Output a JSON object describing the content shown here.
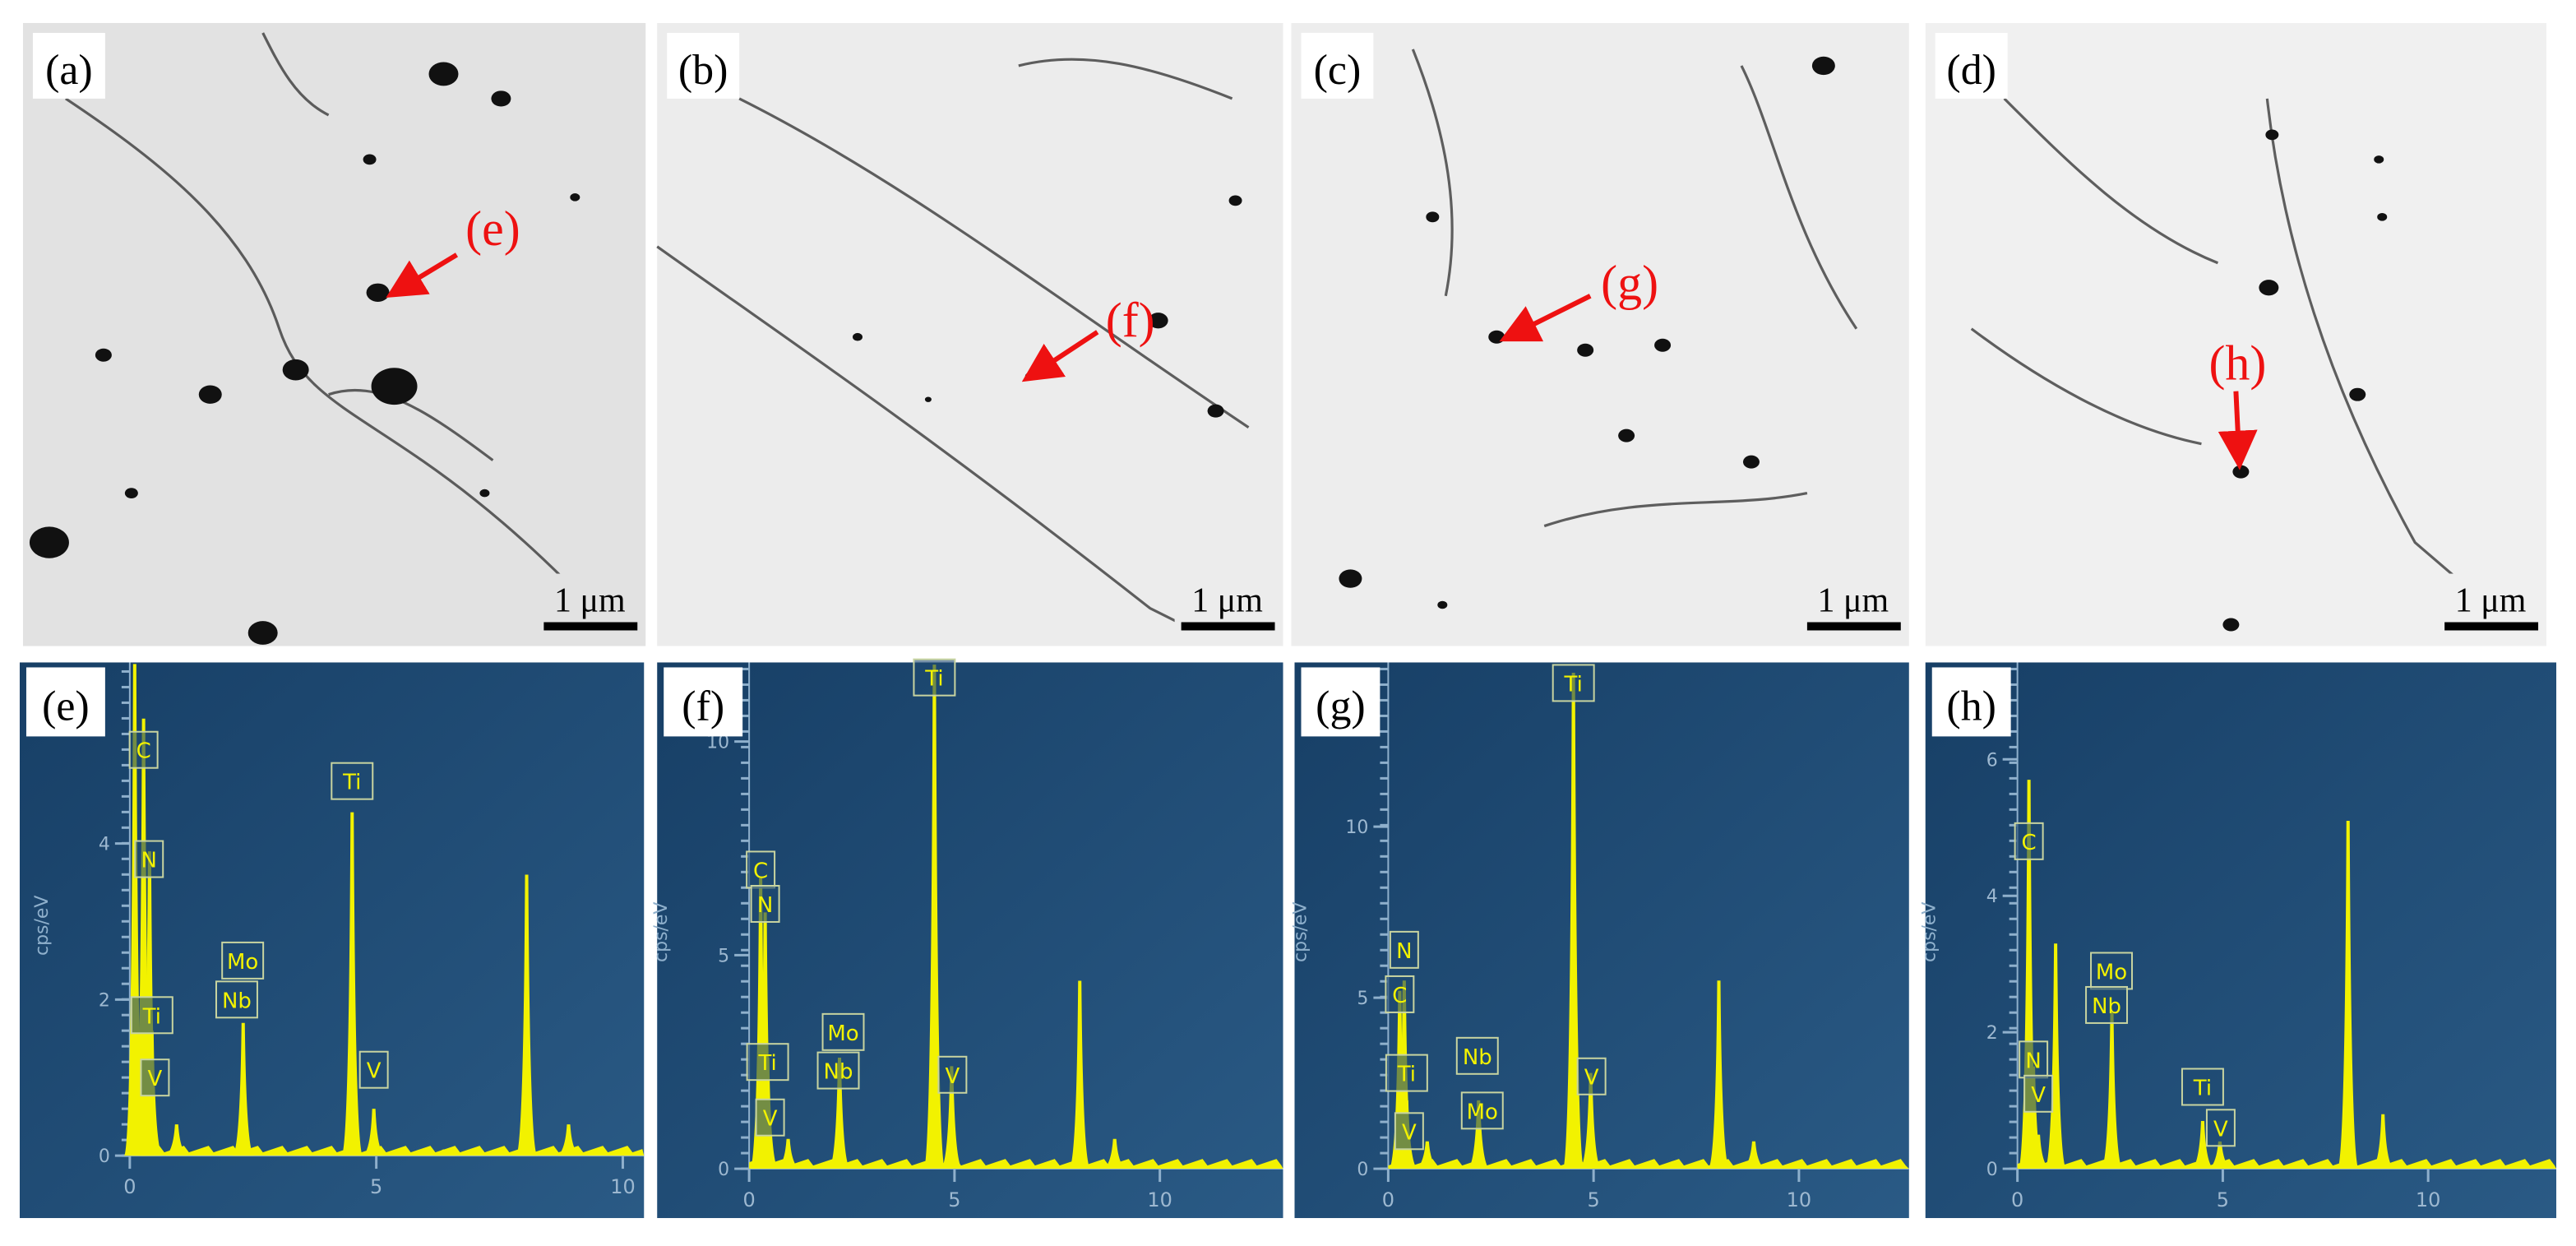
{
  "sem_panels": [
    {
      "label": "(a)",
      "scale_bar": "1 μm",
      "arrow_label": "(e)"
    },
    {
      "label": "(b)",
      "scale_bar": "1 μm",
      "arrow_label": "(f)"
    },
    {
      "label": "(c)",
      "scale_bar": "1 μm",
      "arrow_label": "(g)"
    },
    {
      "label": "(d)",
      "scale_bar": "1 μm",
      "arrow_label": "(h)"
    }
  ],
  "spectra": [
    {
      "label": "(e)",
      "y_label": "cps/eV",
      "xlim": [
        0,
        10.43
      ],
      "ylim": [
        0,
        6.32
      ],
      "xticks": [
        0,
        5,
        10
      ],
      "yticks": [
        0,
        2,
        4
      ],
      "peaks": [
        [
          0.1,
          6.3
        ],
        [
          0.28,
          5.6
        ],
        [
          0.4,
          3.9
        ],
        [
          0.45,
          1.6
        ],
        [
          0.95,
          0.4
        ],
        [
          2.3,
          1.7
        ],
        [
          4.51,
          4.4
        ],
        [
          4.95,
          0.6
        ],
        [
          6.4,
          0.08
        ],
        [
          8.05,
          3.6
        ],
        [
          8.9,
          0.4
        ]
      ],
      "peak_labels": [
        {
          "text": "C",
          "x": 0.28,
          "y": 5.2
        },
        {
          "text": "N",
          "x": 0.39,
          "y": 3.8
        },
        {
          "text": "Ti",
          "x": 0.45,
          "y": 1.8
        },
        {
          "text": "V",
          "x": 0.51,
          "y": 1.0
        },
        {
          "text": "Mo",
          "x": 2.29,
          "y": 2.5
        },
        {
          "text": "Nb",
          "x": 2.17,
          "y": 2.0
        },
        {
          "text": "Ti",
          "x": 4.51,
          "y": 4.8
        },
        {
          "text": "V",
          "x": 4.95,
          "y": 1.1
        }
      ]
    },
    {
      "label": "(f)",
      "y_label": "cps/eV",
      "xlim": [
        0,
        13
      ],
      "ylim": [
        0,
        11.85
      ],
      "xticks": [
        0,
        5,
        10
      ],
      "yticks": [
        0,
        5,
        10
      ],
      "peaks": [
        [
          0.28,
          6.8
        ],
        [
          0.39,
          6.0
        ],
        [
          0.45,
          2.6
        ],
        [
          0.95,
          0.7
        ],
        [
          2.2,
          2.6
        ],
        [
          4.51,
          11.8
        ],
        [
          4.93,
          2.4
        ],
        [
          8.05,
          4.4
        ],
        [
          8.9,
          0.7
        ]
      ],
      "peak_labels": [
        {
          "text": "C",
          "x": 0.28,
          "y": 7.0
        },
        {
          "text": "N",
          "x": 0.39,
          "y": 6.2
        },
        {
          "text": "Ti",
          "x": 0.45,
          "y": 2.5
        },
        {
          "text": "V",
          "x": 0.51,
          "y": 1.2
        },
        {
          "text": "Mo",
          "x": 2.29,
          "y": 3.2
        },
        {
          "text": "Nb",
          "x": 2.17,
          "y": 2.3
        },
        {
          "text": "Ti",
          "x": 4.51,
          "y": 11.5
        },
        {
          "text": "V",
          "x": 4.95,
          "y": 2.2
        }
      ]
    },
    {
      "label": "(g)",
      "y_label": "cps/eV",
      "xlim": [
        0,
        12.68
      ],
      "ylim": [
        0,
        14.8
      ],
      "xticks": [
        0,
        5,
        10
      ],
      "yticks": [
        0,
        5,
        10
      ],
      "peaks": [
        [
          0.28,
          5.2
        ],
        [
          0.39,
          5.5
        ],
        [
          0.45,
          2.0
        ],
        [
          0.95,
          0.8
        ],
        [
          2.2,
          2.0
        ],
        [
          4.51,
          14.5
        ],
        [
          4.93,
          2.8
        ],
        [
          8.05,
          5.5
        ],
        [
          8.9,
          0.8
        ]
      ],
      "peak_labels": [
        {
          "text": "C",
          "x": 0.28,
          "y": 5.1
        },
        {
          "text": "N",
          "x": 0.39,
          "y": 6.4
        },
        {
          "text": "Ti",
          "x": 0.45,
          "y": 2.8
        },
        {
          "text": "V",
          "x": 0.51,
          "y": 1.1
        },
        {
          "text": "Nb",
          "x": 2.17,
          "y": 3.3
        },
        {
          "text": "Mo",
          "x": 2.29,
          "y": 1.7
        },
        {
          "text": "Ti",
          "x": 4.51,
          "y": 14.2
        },
        {
          "text": "V",
          "x": 4.95,
          "y": 2.7
        }
      ]
    },
    {
      "label": "(h)",
      "y_label": "cps/eV",
      "xlim": [
        0,
        13.12
      ],
      "ylim": [
        0,
        7.42
      ],
      "xticks": [
        0,
        5,
        10
      ],
      "yticks": [
        0,
        2,
        4,
        6
      ],
      "peaks": [
        [
          0.28,
          5.7
        ],
        [
          0.39,
          1.5
        ],
        [
          0.51,
          0.5
        ],
        [
          0.93,
          3.3
        ],
        [
          2.3,
          2.3
        ],
        [
          4.51,
          0.7
        ],
        [
          4.93,
          0.4
        ],
        [
          8.05,
          5.1
        ],
        [
          8.9,
          0.8
        ]
      ],
      "peak_labels": [
        {
          "text": "C",
          "x": 0.28,
          "y": 4.8
        },
        {
          "text": "Mo",
          "x": 2.29,
          "y": 2.9
        },
        {
          "text": "Nb",
          "x": 2.17,
          "y": 2.4
        },
        {
          "text": "N",
          "x": 0.39,
          "y": 1.6
        },
        {
          "text": "V",
          "x": 0.51,
          "y": 1.1
        },
        {
          "text": "Ti",
          "x": 4.51,
          "y": 1.2
        },
        {
          "text": "V",
          "x": 4.95,
          "y": 0.6
        }
      ]
    }
  ]
}
